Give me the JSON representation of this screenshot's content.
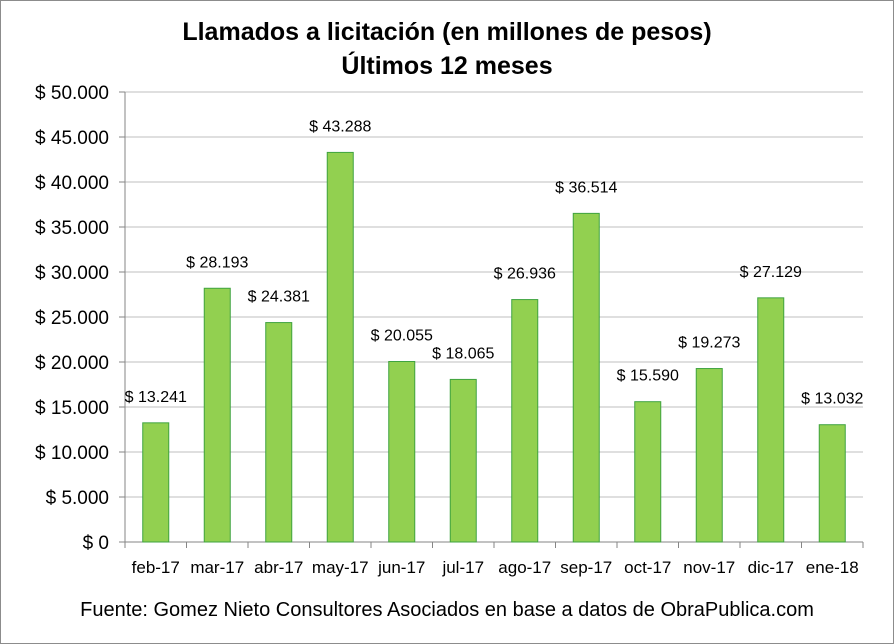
{
  "title_lines": [
    "Llamados a licitación (en millones de pesos)",
    "Últimos 12 meses"
  ],
  "source": "Fuente: Gomez Nieto Consultores Asociados en base a datos de ObraPublica.com",
  "colors": {
    "bar_fill": "#92D050",
    "bar_stroke": "#3FA33F",
    "grid": "#BFBFBF",
    "axis": "#868686"
  },
  "chart_data": {
    "type": "bar",
    "title": "Llamados a licitación (en millones de pesos) — Últimos 12 meses",
    "categories": [
      "feb-17",
      "mar-17",
      "abr-17",
      "may-17",
      "jun-17",
      "jul-17",
      "ago-17",
      "sep-17",
      "oct-17",
      "nov-17",
      "dic-17",
      "ene-18"
    ],
    "values": [
      13241,
      28193,
      24381,
      43288,
      20055,
      18065,
      26936,
      36514,
      15590,
      19273,
      27129,
      13032
    ],
    "data_labels": [
      "$ 13.241",
      "$ 28.193",
      "$ 24.381",
      "$ 43.288",
      "$ 20.055",
      "$ 18.065",
      "$ 26.936",
      "$ 36.514",
      "$ 15.590",
      "$ 19.273",
      "$ 27.129",
      "$ 13.032"
    ],
    "ylim": [
      0,
      50000
    ],
    "yticks": [
      0,
      5000,
      10000,
      15000,
      20000,
      25000,
      30000,
      35000,
      40000,
      45000,
      50000
    ],
    "ytick_labels": [
      "$ 0",
      "$ 5.000",
      "$ 10.000",
      "$ 15.000",
      "$ 20.000",
      "$ 25.000",
      "$ 30.000",
      "$ 35.000",
      "$ 40.000",
      "$ 45.000",
      "$ 50.000"
    ],
    "xlabel": "",
    "ylabel": "",
    "grid": true,
    "legend": "none"
  }
}
